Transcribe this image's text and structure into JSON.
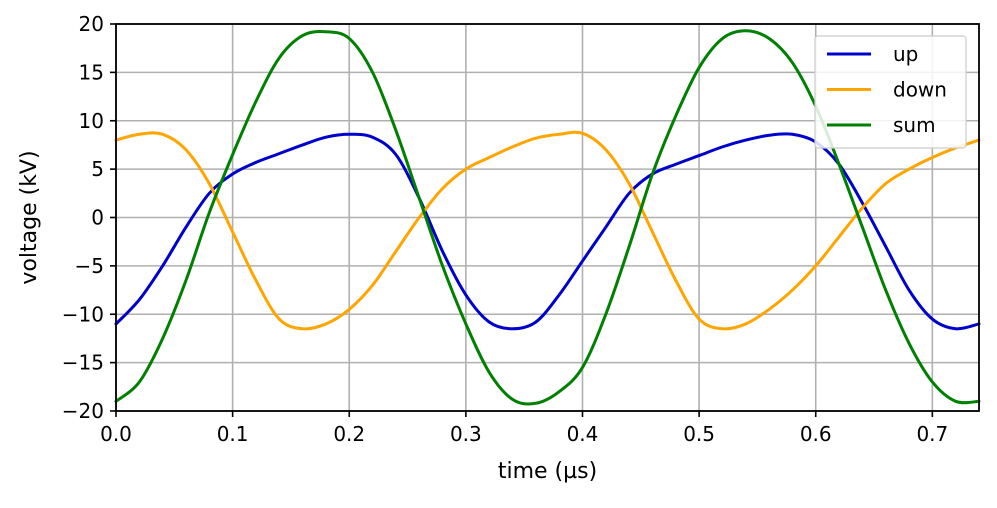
{
  "chart_data": {
    "type": "line",
    "xlabel": "time (µs)",
    "ylabel": "voltage (kV)",
    "xlim": [
      0,
      0.74
    ],
    "ylim": [
      -20,
      20
    ],
    "xticks": [
      0.0,
      0.1,
      0.2,
      0.3,
      0.4,
      0.5,
      0.6,
      0.7
    ],
    "xtick_labels": [
      "0.0",
      "0.1",
      "0.2",
      "0.3",
      "0.4",
      "0.5",
      "0.6",
      "0.7"
    ],
    "yticks": [
      20,
      15,
      10,
      5,
      0,
      -5,
      -10,
      -15,
      -20
    ],
    "ytick_labels": [
      "20",
      "15",
      "10",
      "5",
      "0",
      "−5",
      "−10",
      "−15",
      "−20"
    ],
    "grid": true,
    "legend_position": "top-right",
    "x": [
      0.0,
      0.02,
      0.04,
      0.06,
      0.08,
      0.1,
      0.12,
      0.14,
      0.16,
      0.18,
      0.2,
      0.22,
      0.24,
      0.26,
      0.28,
      0.3,
      0.32,
      0.34,
      0.36,
      0.38,
      0.4,
      0.42,
      0.44,
      0.46,
      0.48,
      0.5,
      0.52,
      0.54,
      0.56,
      0.58,
      0.6,
      0.62,
      0.64,
      0.66,
      0.68,
      0.7,
      0.72,
      0.74
    ],
    "series": [
      {
        "name": "up",
        "color": "#0000cc",
        "values": [
          -11.0,
          -8.5,
          -5.0,
          -1.0,
          2.5,
          4.5,
          5.7,
          6.6,
          7.5,
          8.3,
          8.6,
          8.3,
          6.5,
          2.0,
          -3.5,
          -8.0,
          -10.8,
          -11.5,
          -10.8,
          -8.0,
          -4.5,
          -1.0,
          2.5,
          4.5,
          5.5,
          6.4,
          7.3,
          8.0,
          8.5,
          8.6,
          7.8,
          5.5,
          1.5,
          -3.0,
          -7.5,
          -10.5,
          -11.5,
          -11.0
        ]
      },
      {
        "name": "down",
        "color": "#ffa500",
        "values": [
          8.0,
          8.6,
          8.6,
          7.0,
          3.5,
          -1.5,
          -6.5,
          -10.5,
          -11.5,
          -11.0,
          -9.5,
          -7.0,
          -3.5,
          0.0,
          3.0,
          5.0,
          6.2,
          7.3,
          8.2,
          8.6,
          8.7,
          7.0,
          3.5,
          -1.5,
          -6.5,
          -10.5,
          -11.5,
          -11.0,
          -9.5,
          -7.5,
          -5.0,
          -2.0,
          1.0,
          3.5,
          5.0,
          6.2,
          7.2,
          8.0
        ]
      },
      {
        "name": "sum",
        "color": "#008000",
        "values": [
          -19.0,
          -17.0,
          -12.5,
          -6.5,
          0.5,
          6.5,
          12.0,
          16.5,
          18.8,
          19.2,
          18.5,
          15.0,
          9.0,
          2.0,
          -5.0,
          -11.0,
          -16.0,
          -18.8,
          -19.2,
          -18.0,
          -15.5,
          -10.0,
          -3.0,
          4.5,
          10.5,
          15.5,
          18.5,
          19.3,
          18.5,
          16.0,
          11.5,
          5.5,
          -1.0,
          -7.5,
          -13.0,
          -17.0,
          -19.0,
          -19.0
        ]
      }
    ]
  }
}
